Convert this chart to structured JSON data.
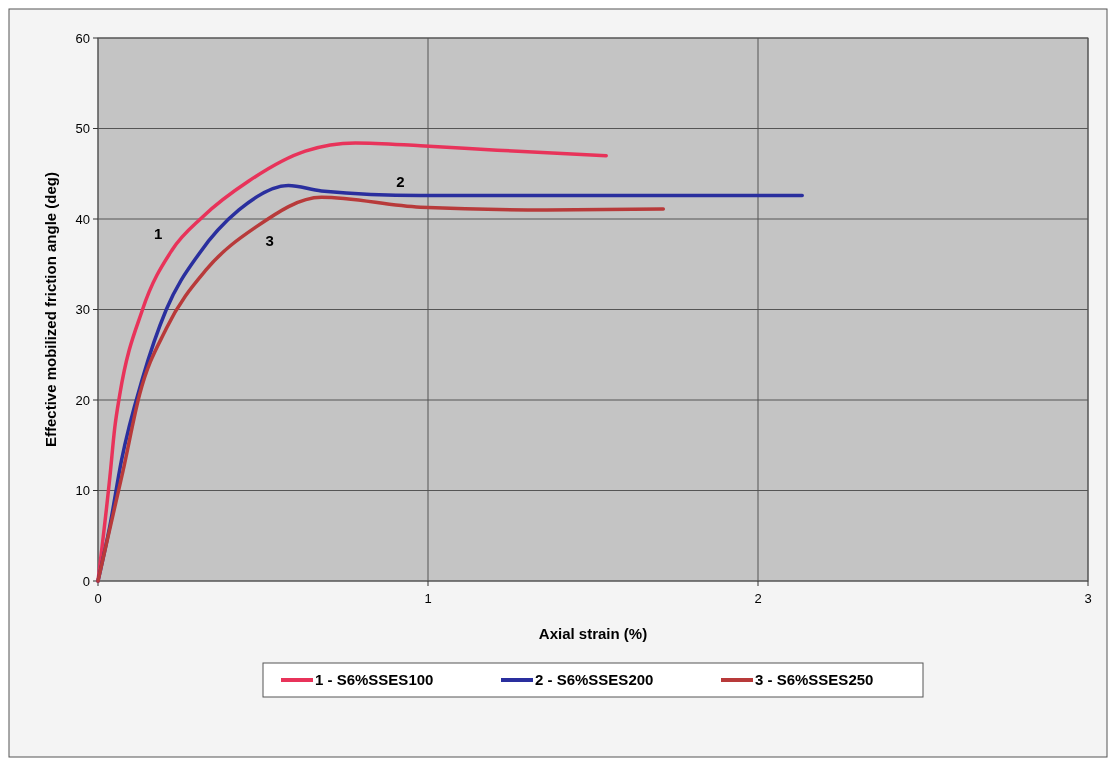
{
  "chart_data": {
    "type": "line",
    "xlabel": "Axial strain (%)",
    "ylabel": "Effective mobilized  friction angle (deg)",
    "xlim": [
      0,
      3
    ],
    "ylim": [
      0,
      60
    ],
    "xticks": [
      0,
      1,
      2,
      3
    ],
    "yticks": [
      0,
      10,
      20,
      30,
      40,
      50,
      60
    ],
    "grid": true,
    "legend": "bottom",
    "marker": "none",
    "line_style": "solid",
    "annotations": [
      "1",
      "2",
      "3"
    ],
    "series": [
      {
        "name": "1 - S6%SSES100",
        "color": "#e8335a",
        "x": [
          0,
          0.036,
          0.051,
          0.066,
          0.135,
          0.225,
          0.316,
          0.457,
          0.628,
          0.78,
          0.977,
          1.21,
          1.54
        ],
        "values": [
          0,
          11.5,
          17,
          20.6,
          30,
          36.6,
          40.2,
          44.2,
          47.5,
          48.4,
          48.1,
          47.6,
          47.0
        ]
      },
      {
        "name": "2 - S6%SSES200",
        "color": "#2a2f9e",
        "x": [
          0,
          0.036,
          0.071,
          0.135,
          0.207,
          0.307,
          0.427,
          0.577,
          0.677,
          0.977,
          1.5,
          2.134
        ],
        "values": [
          0,
          6.1,
          13.3,
          22.4,
          30,
          36.2,
          41,
          43.7,
          43.1,
          42.6,
          42.6,
          42.6
        ]
      },
      {
        "name": "3 - S6%SSES250",
        "color": "#b83a3a",
        "x": [
          0,
          0.026,
          0.076,
          0.126,
          0.207,
          0.328,
          0.478,
          0.677,
          0.977,
          1.36,
          1.713
        ],
        "values": [
          0,
          4.2,
          12.2,
          20.6,
          27.9,
          34.4,
          39.1,
          42.4,
          41.3,
          41.0,
          41.1
        ]
      }
    ]
  }
}
